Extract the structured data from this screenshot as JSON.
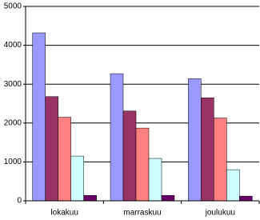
{
  "chart_data": {
    "type": "bar",
    "categories": [
      "lokakuu",
      "marraskuu",
      "joulukuu"
    ],
    "series": [
      {
        "color": "#9999ff",
        "values": [
          4320,
          3270,
          3140
        ]
      },
      {
        "color": "#993366",
        "values": [
          2680,
          2310,
          2650
        ]
      },
      {
        "color": "#ff8080",
        "values": [
          2150,
          1870,
          2130
        ]
      },
      {
        "color": "#ccffff",
        "values": [
          1150,
          1090,
          800
        ]
      },
      {
        "color": "#660066",
        "values": [
          140,
          140,
          120
        ]
      }
    ],
    "ylim": [
      0,
      5000
    ],
    "yticks": [
      0,
      1000,
      2000,
      3000,
      4000,
      5000
    ],
    "grid": true
  }
}
